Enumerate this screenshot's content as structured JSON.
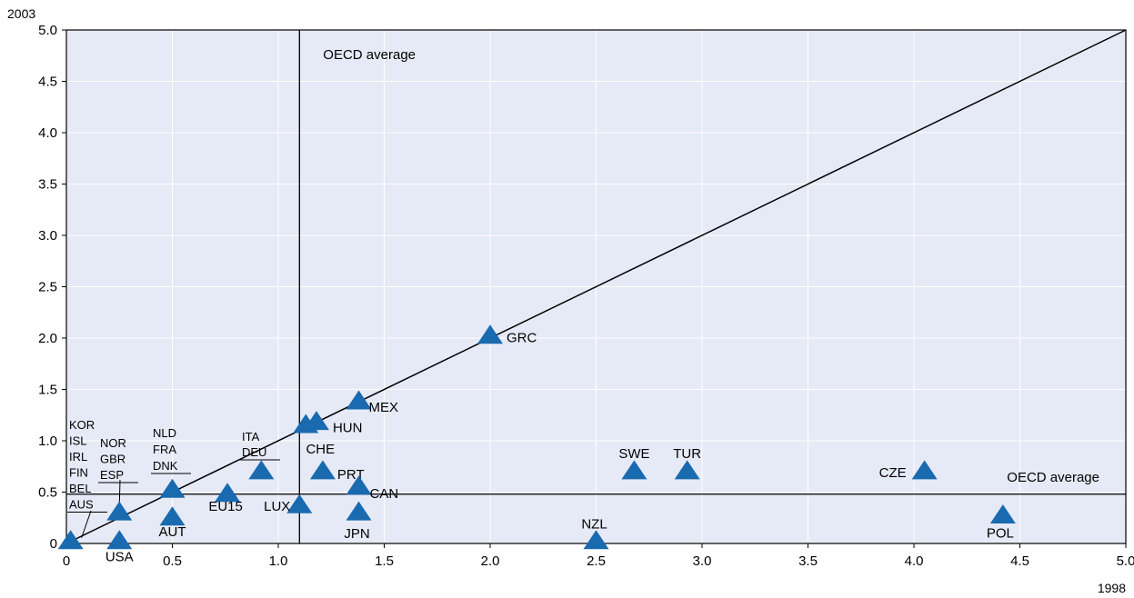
{
  "chart_data": {
    "type": "scatter",
    "title": "",
    "xlabel": "1998",
    "ylabel": "2003",
    "xlim": [
      0,
      5.0
    ],
    "ylim": [
      0,
      5.0
    ],
    "x_ticks": [
      "0",
      "0.5",
      "1.0",
      "1.5",
      "2.0",
      "2.5",
      "3.0",
      "3.5",
      "4.0",
      "4.5",
      "5.0"
    ],
    "y_ticks": [
      "0",
      "0.5",
      "1.0",
      "1.5",
      "2.0",
      "2.5",
      "3.0",
      "3.5",
      "4.0",
      "4.5",
      "5.0"
    ],
    "grid": true,
    "diagonal_line": true,
    "reference_lines": {
      "vertical": {
        "x": 1.1,
        "label": "OECD average"
      },
      "horizontal": {
        "y": 0.48,
        "label": "OECD average"
      }
    },
    "points": [
      {
        "label": "USA",
        "x": 0.25,
        "y": 0.02
      },
      {
        "label": "AUT",
        "x": 0.5,
        "y": 0.25
      },
      {
        "label": "EU15",
        "x": 0.76,
        "y": 0.48
      },
      {
        "label": "LUX",
        "x": 1.1,
        "y": 0.37
      },
      {
        "label": "CHE",
        "x": 1.13,
        "y": 1.15
      },
      {
        "label": "HUN",
        "x": 1.18,
        "y": 1.18
      },
      {
        "label": "MEX",
        "x": 1.38,
        "y": 1.38
      },
      {
        "label": "PRT",
        "x": 1.21,
        "y": 0.7
      },
      {
        "label": "CAN",
        "x": 1.38,
        "y": 0.55
      },
      {
        "label": "JPN",
        "x": 1.38,
        "y": 0.3
      },
      {
        "label": "GRC",
        "x": 2.0,
        "y": 2.02
      },
      {
        "label": "NZL",
        "x": 2.5,
        "y": 0.02
      },
      {
        "label": "SWE",
        "x": 2.68,
        "y": 0.7
      },
      {
        "label": "TUR",
        "x": 2.93,
        "y": 0.7
      },
      {
        "label": "CZE",
        "x": 4.05,
        "y": 0.7
      },
      {
        "label": "POL",
        "x": 4.42,
        "y": 0.27
      }
    ],
    "clusters": [
      {
        "labels": [
          "KOR",
          "ISL",
          "IRL",
          "FIN",
          "BEL",
          "AUS"
        ],
        "x": 0.02,
        "y": 0.02
      },
      {
        "labels": [
          "NOR",
          "GBR",
          "ESP"
        ],
        "x": 0.25,
        "y": 0.3
      },
      {
        "labels": [
          "NLD",
          "FRA",
          "DNK"
        ],
        "x": 0.5,
        "y": 0.52
      },
      {
        "labels": [
          "ITA",
          "DEU"
        ],
        "x": 0.92,
        "y": 0.7
      }
    ],
    "marker_color": "#1a6ab0",
    "plot_background": "#e6eaf6"
  }
}
